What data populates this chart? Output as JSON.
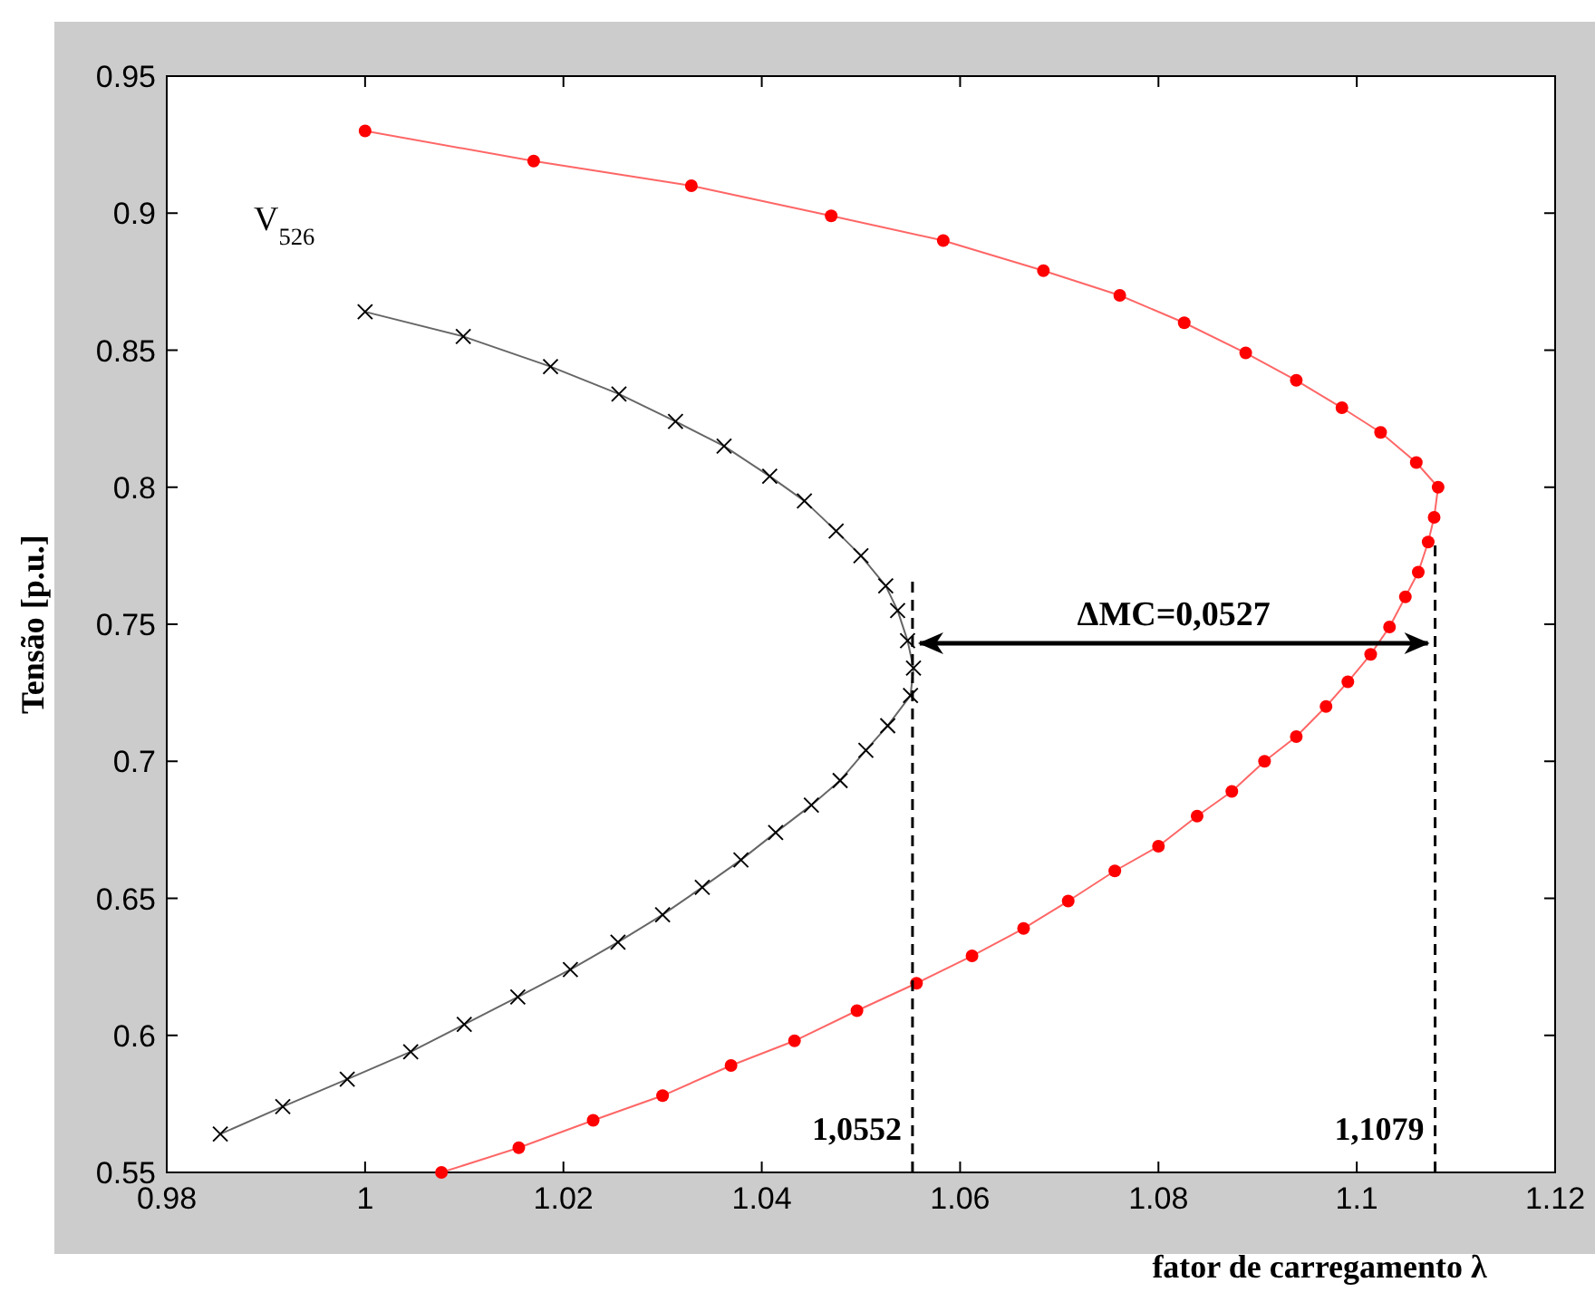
{
  "chart_data": {
    "type": "line",
    "xlabel": "fator de carregamento λ",
    "ylabel": "Tensão [p.u.]",
    "xlim": [
      0.98,
      1.12
    ],
    "ylim": [
      0.55,
      0.95
    ],
    "xticks": [
      0.98,
      1,
      1.02,
      1.04,
      1.06,
      1.08,
      1.1,
      1.12
    ],
    "yticks": [
      0.55,
      0.6,
      0.65,
      0.7,
      0.75,
      0.8,
      0.85,
      0.9,
      0.95
    ],
    "grid": false,
    "line_style": "solid",
    "annotations": [
      "V$_{526}$",
      "ΔMC=0,0527"
    ],
    "ref_lines": [
      {
        "axis": "x",
        "value": 1.0552,
        "label": "1,0552",
        "line_style": "dashed",
        "color": "#000000"
      },
      {
        "axis": "x",
        "value": 1.1079,
        "label": "1,1079",
        "line_style": "dashed",
        "color": "#000000"
      }
    ],
    "series": [
      {
        "color": "#ff0000",
        "marker": "circle",
        "x": [
          1.0,
          1.017,
          1.0329,
          1.047,
          1.0583,
          1.0684,
          1.0761,
          1.0826,
          1.0888,
          1.0939,
          1.0985,
          1.1024,
          1.106,
          1.1082,
          1.1078,
          1.1072,
          1.1062,
          1.1049,
          1.1033,
          1.1014,
          1.0991,
          1.0969,
          1.0939,
          1.0907,
          1.0874,
          1.0839,
          1.08,
          1.0756,
          1.0709,
          1.0664,
          1.0612,
          1.0556,
          1.0496,
          1.0433,
          1.0369,
          1.03,
          1.023,
          1.0155,
          1.0077
        ],
        "values": [
          0.93,
          0.919,
          0.91,
          0.899,
          0.89,
          0.879,
          0.87,
          0.86,
          0.849,
          0.839,
          0.829,
          0.82,
          0.809,
          0.8,
          0.789,
          0.78,
          0.769,
          0.76,
          0.749,
          0.739,
          0.729,
          0.72,
          0.709,
          0.7,
          0.689,
          0.68,
          0.669,
          0.66,
          0.649,
          0.639,
          0.629,
          0.619,
          0.609,
          0.598,
          0.589,
          0.578,
          0.569,
          0.559,
          0.55
        ]
      },
      {
        "color": "#000000",
        "marker": "cross",
        "x": [
          1.0,
          1.0099,
          1.0187,
          1.0256,
          1.0313,
          1.0362,
          1.0408,
          1.0443,
          1.0475,
          1.05,
          1.0525,
          1.0537,
          1.0547,
          1.0553,
          1.055,
          1.0527,
          1.0505,
          1.0479,
          1.045,
          1.0414,
          1.0379,
          1.034,
          1.03,
          1.0255,
          1.0207,
          1.0154,
          1.01,
          1.0046,
          0.9982,
          0.9917,
          0.9854
        ],
        "values": [
          0.864,
          0.855,
          0.844,
          0.834,
          0.824,
          0.815,
          0.804,
          0.795,
          0.784,
          0.775,
          0.764,
          0.755,
          0.744,
          0.734,
          0.724,
          0.713,
          0.704,
          0.693,
          0.684,
          0.674,
          0.664,
          0.654,
          0.644,
          0.634,
          0.624,
          0.614,
          0.604,
          0.594,
          0.584,
          0.574,
          0.564
        ]
      }
    ]
  }
}
